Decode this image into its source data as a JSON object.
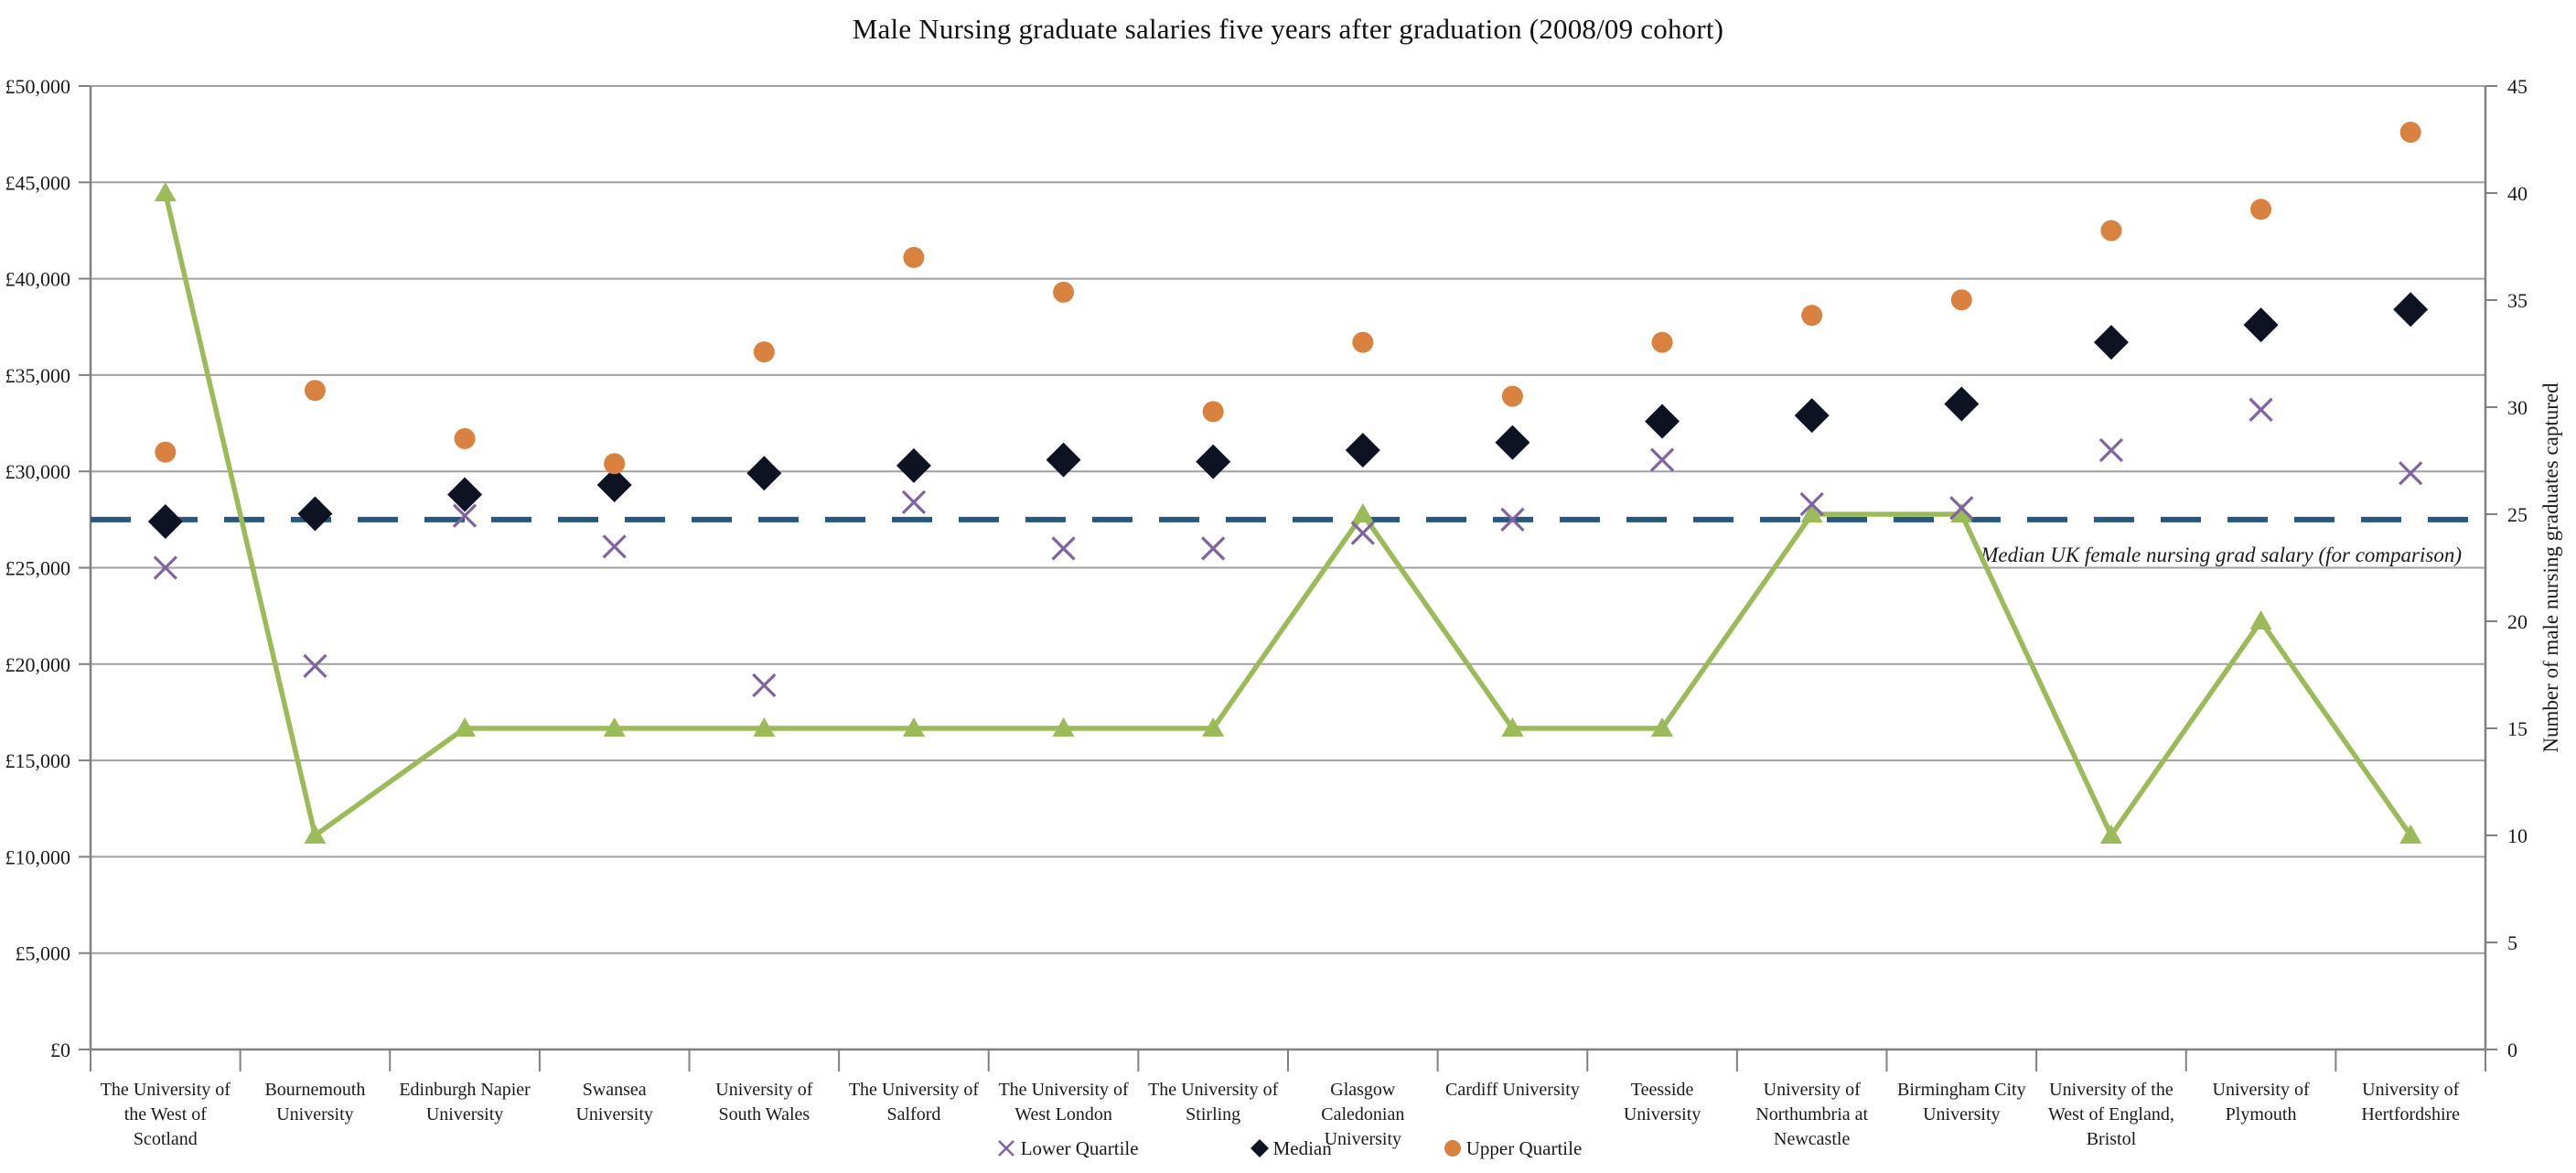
{
  "page_title": "Male Nursing graduate salaries five years after graduation (2008/09 cohort)",
  "chart_data": {
    "type": "scatter",
    "title": "Male Nursing graduate salaries five years after graduation (2008/09 cohort)",
    "categories": [
      "The University of the West of Scotland",
      "Bournemouth University",
      "Edinburgh Napier University",
      "Swansea University",
      "University of South Wales",
      "The University of Salford",
      "The University of West London",
      "The University of Stirling",
      "Glasgow Caledonian University",
      "Cardiff University",
      "Teesside University",
      "University of Northumbria at Newcastle",
      "Birmingham City University",
      "University of the West of England, Bristol",
      "University of Plymouth",
      "University of Hertfordshire"
    ],
    "category_label_lines": [
      [
        "The University of",
        "the West of",
        "Scotland"
      ],
      [
        "Bournemouth",
        "University"
      ],
      [
        "Edinburgh Napier",
        "University"
      ],
      [
        "Swansea",
        "University"
      ],
      [
        "University of",
        "South Wales"
      ],
      [
        "The University of",
        "Salford"
      ],
      [
        "The University of",
        "West London"
      ],
      [
        "The University of",
        "Stirling"
      ],
      [
        "Glasgow",
        "Caledonian",
        "University"
      ],
      [
        "Cardiff University"
      ],
      [
        "Teesside",
        "University"
      ],
      [
        "University of",
        "Northumbria at",
        "Newcastle"
      ],
      [
        "Birmingham City",
        "University"
      ],
      [
        "University of the",
        "West of England,",
        "Bristol"
      ],
      [
        "University of",
        "Plymouth"
      ],
      [
        "University of",
        "Hertfordshire"
      ]
    ],
    "series": [
      {
        "name": "Lower Quartile",
        "type": "scatter",
        "marker": "x",
        "axis": "left",
        "color": "#8064A2",
        "values": [
          25000,
          19900,
          27700,
          26100,
          18900,
          28400,
          26000,
          26000,
          26800,
          27500,
          30600,
          28300,
          28100,
          31100,
          33200,
          29900
        ]
      },
      {
        "name": "Median",
        "type": "scatter",
        "marker": "diamond",
        "axis": "left",
        "color": "#0D1322",
        "values": [
          27400,
          27800,
          28800,
          29300,
          29900,
          30300,
          30600,
          30500,
          31100,
          31500,
          32600,
          32900,
          33500,
          36700,
          37600,
          38400
        ]
      },
      {
        "name": "Upper Quartile",
        "type": "scatter",
        "marker": "circle",
        "axis": "left",
        "color": "#D9823F",
        "values": [
          31000,
          34200,
          31700,
          30400,
          36200,
          41100,
          39300,
          33100,
          36700,
          33900,
          36700,
          38100,
          38900,
          42500,
          43600,
          47600
        ]
      },
      {
        "name": "Number of male nursing graduates captured",
        "type": "line",
        "marker": "triangle",
        "axis": "right",
        "color": "#9BBB59",
        "values": [
          40,
          10,
          15,
          15,
          15,
          15,
          15,
          15,
          25,
          15,
          15,
          25,
          25,
          10,
          20,
          10
        ]
      }
    ],
    "reference_line": {
      "value": 27500,
      "label": "Median UK female nursing grad salary (for comparison)",
      "color": "#275880",
      "style": "dashed"
    },
    "y_left": {
      "min": 0,
      "max": 50000,
      "step": 5000,
      "tick_labels": [
        "£0",
        "£5,000",
        "£10,000",
        "£15,000",
        "£20,000",
        "£25,000",
        "£30,000",
        "£35,000",
        "£40,000",
        "£45,000",
        "£50,000"
      ]
    },
    "y_right": {
      "min": 0,
      "max": 45,
      "step": 5,
      "tick_labels": [
        "0",
        "5",
        "10",
        "15",
        "20",
        "25",
        "30",
        "35",
        "40",
        "45"
      ],
      "title": "Number of male nursing graduates captured"
    },
    "legend": [
      {
        "label": "Lower Quartile",
        "marker": "x",
        "color": "#8064A2"
      },
      {
        "label": "Median",
        "marker": "diamond",
        "color": "#0D1322"
      },
      {
        "label": "Upper Quartile",
        "marker": "circle",
        "color": "#D9823F"
      }
    ],
    "grid": true,
    "legend_position": "bottom",
    "colors": {
      "gridline": "#A0A0A0",
      "axis": "#808080",
      "text": "#1a1a1a"
    }
  }
}
